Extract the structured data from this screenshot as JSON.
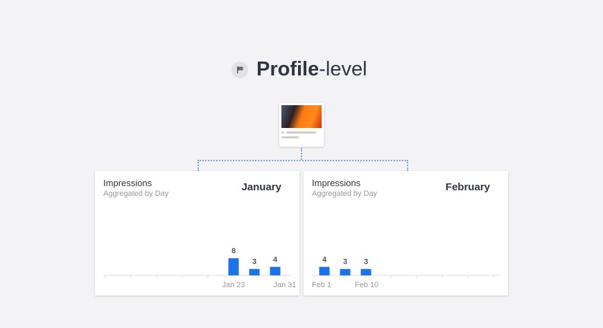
{
  "header": {
    "icon": "flag-icon",
    "title_bold": "Profile",
    "title_light": "-level"
  },
  "chart_data": [
    {
      "type": "bar",
      "title": "Impressions",
      "subtitle": "Aggregated by Day",
      "month": "January",
      "tick_labels": [
        "Jan 23",
        "Jan 31"
      ],
      "values": [
        8,
        3,
        4
      ],
      "data_labels": [
        "8",
        "3",
        "4"
      ],
      "color": "#1a73e8",
      "grid": false
    },
    {
      "type": "bar",
      "title": "Impressions",
      "subtitle": "Aggregated by Day",
      "month": "February",
      "tick_labels": [
        "Feb 1",
        "Feb 10"
      ],
      "values": [
        4,
        3,
        3
      ],
      "data_labels": [
        "4",
        "3",
        "3"
      ],
      "color": "#1a73e8",
      "grid": false
    }
  ]
}
